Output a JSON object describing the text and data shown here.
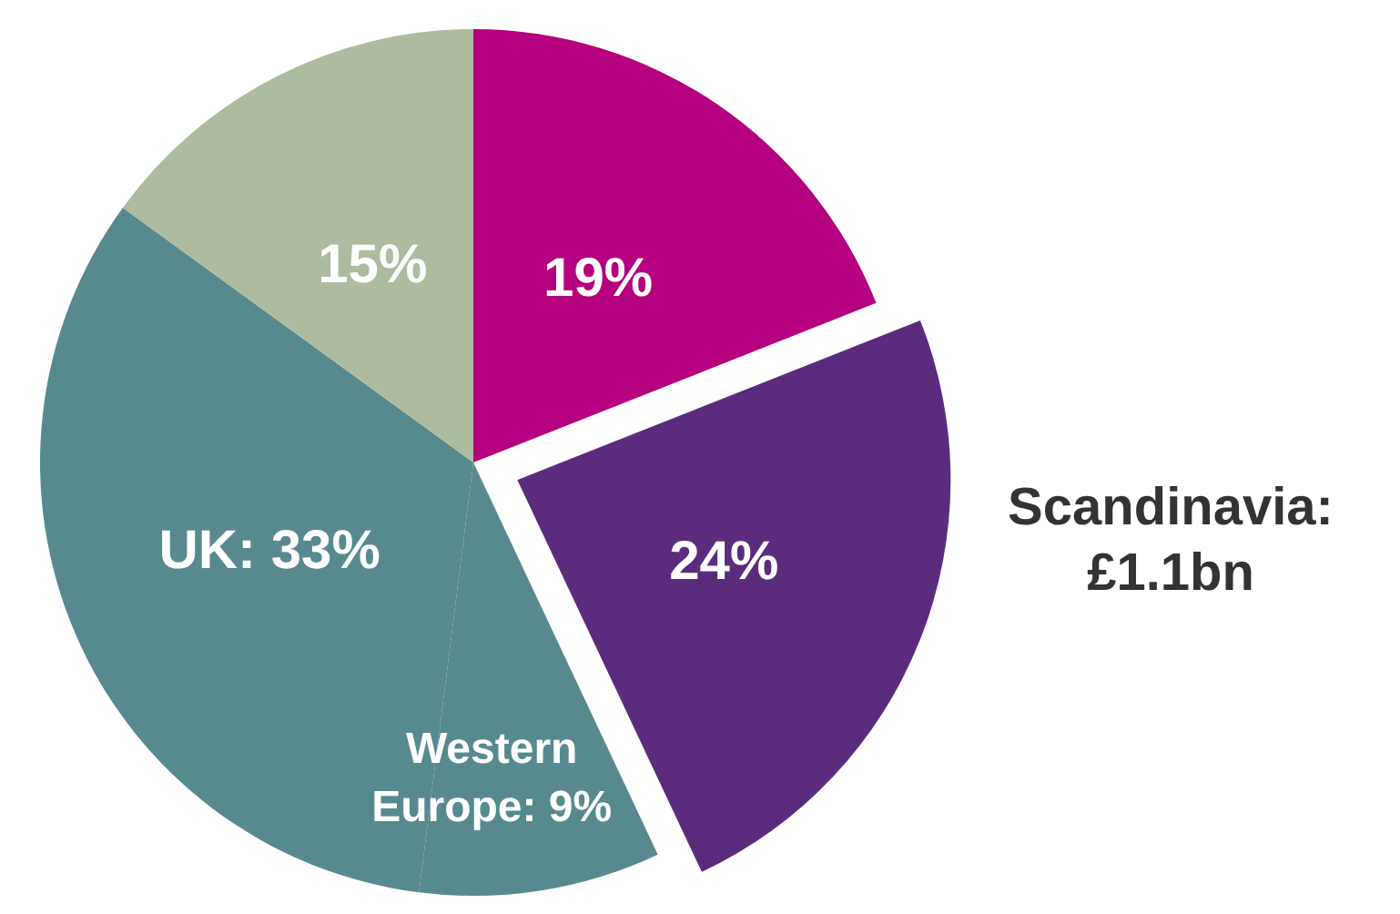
{
  "chart_data": {
    "type": "pie",
    "categories": [
      null,
      "Scandinavia: £1.1bn",
      null,
      null,
      null
    ],
    "values": [
      19,
      24,
      9,
      33,
      15
    ],
    "colors": [
      "#b5007f",
      "#5b2c7d",
      "#578a8f",
      "#578a8f",
      "#adbba0"
    ],
    "value_labels": [
      "19%",
      "24%",
      "Western\nEurope: 9%",
      "UK: 33%",
      "15%"
    ],
    "legend": false
  }
}
